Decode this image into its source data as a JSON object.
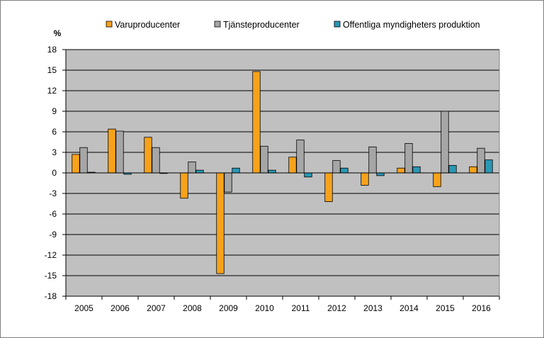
{
  "chart_data": {
    "type": "bar",
    "ylabel": "%",
    "ylim": [
      -18,
      18
    ],
    "yticks": [
      18,
      15,
      12,
      9,
      6,
      3,
      0,
      -3,
      -6,
      -9,
      -12,
      -15,
      -18
    ],
    "grid": true,
    "legend_position": "top",
    "categories": [
      "2005",
      "2006",
      "2007",
      "2008",
      "2009",
      "2010",
      "2011",
      "2012",
      "2013",
      "2014",
      "2015",
      "2016"
    ],
    "series": [
      {
        "name": "Varuproducenter",
        "color": "#f7a21b",
        "values": [
          2.7,
          6.4,
          5.2,
          -3.7,
          -14.7,
          14.8,
          2.3,
          -4.2,
          -1.8,
          0.7,
          -2.0,
          0.9
        ]
      },
      {
        "name": "Tjänsteproducenter",
        "color": "#a6a6a6",
        "values": [
          3.7,
          6.1,
          3.7,
          1.6,
          -2.8,
          3.9,
          4.8,
          1.8,
          3.8,
          4.3,
          9.0,
          3.6
        ]
      },
      {
        "name": "Offentliga myndigheters produktion",
        "color": "#2a97b4",
        "values": [
          0.1,
          -0.2,
          0.0,
          0.4,
          0.7,
          0.4,
          -0.6,
          0.7,
          -0.4,
          0.9,
          1.1,
          1.9
        ]
      }
    ]
  }
}
